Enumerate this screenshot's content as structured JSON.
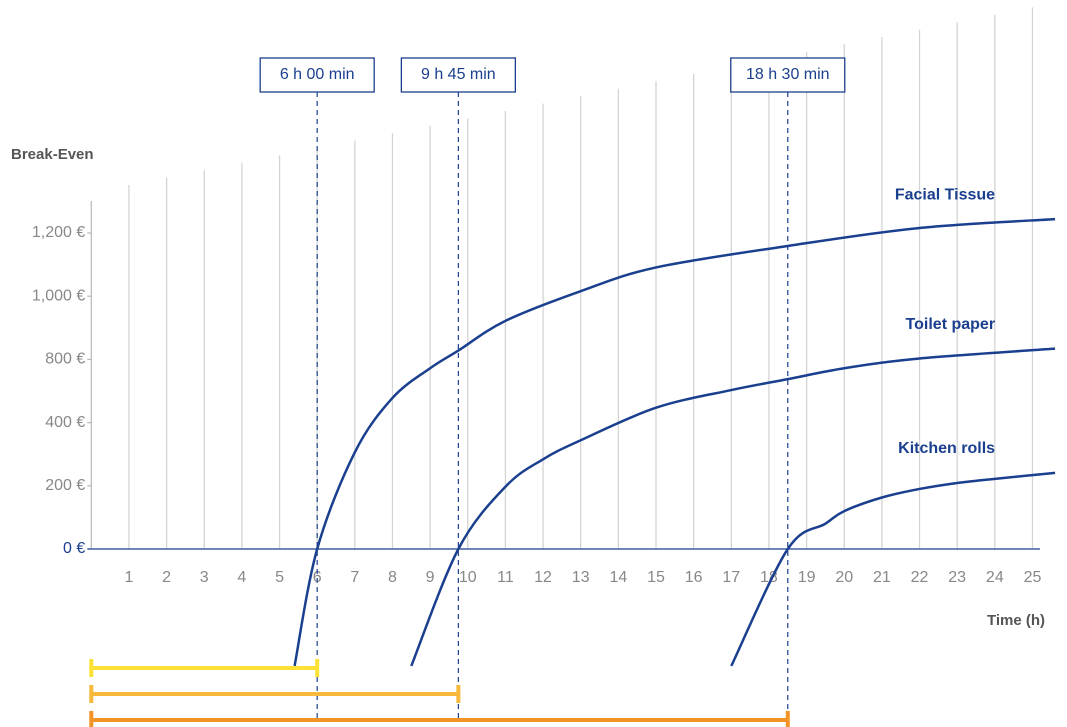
{
  "chart_data": {
    "type": "line",
    "y_label": "Break-Even",
    "x_label": "Time (h)",
    "xlim": [
      0,
      25.2
    ],
    "xticks": [
      1,
      2,
      3,
      4,
      5,
      6,
      7,
      8,
      9,
      10,
      11,
      12,
      13,
      14,
      15,
      16,
      17,
      18,
      19,
      20,
      21,
      22,
      23,
      24,
      25
    ],
    "yticks": [
      {
        "value": 0,
        "label": "0 €"
      },
      {
        "value": 200,
        "label": "200 €"
      },
      {
        "value": 400,
        "label": "400 €"
      },
      {
        "value": 800,
        "label": "800 €"
      },
      {
        "value": 1000,
        "label": "1,000 €"
      },
      {
        "value": 1200,
        "label": "1,200 €"
      }
    ],
    "grid": true,
    "series": [
      {
        "name": "Facial Tissue",
        "color": "#1b3f8f",
        "x": [
          5.4,
          6,
          7,
          8,
          9,
          9.75,
          11,
          13,
          15,
          18.5,
          22,
          25.6
        ],
        "values": [
          -370,
          0,
          306,
          556,
          744,
          828,
          922,
          1016,
          1091,
          1159,
          1216,
          1244
        ]
      },
      {
        "name": "Toilet paper",
        "color": "#1b3f8f",
        "x": [
          8.5,
          9.75,
          11,
          12,
          13,
          15,
          17,
          18.5,
          20,
          22,
          25.6
        ],
        "values": [
          -370,
          0,
          197,
          284,
          344,
          494,
          606,
          675,
          744,
          803,
          834
        ]
      },
      {
        "name": "Kitchen rolls",
        "color": "#1b3f8f",
        "x": [
          17,
          18.5,
          19.5,
          20,
          21,
          22,
          23,
          24,
          25.6
        ],
        "values": [
          -370,
          0,
          80,
          120,
          163,
          190,
          209,
          222,
          241
        ]
      }
    ],
    "annotations": [
      {
        "x": 6,
        "label": "6 h 00 min",
        "color": "#fde135"
      },
      {
        "x": 9.75,
        "label": "9 h 45 min",
        "color": "#f6b93b"
      },
      {
        "x": 18.5,
        "label": "18 h 30 min",
        "color": "#f29325"
      }
    ]
  }
}
